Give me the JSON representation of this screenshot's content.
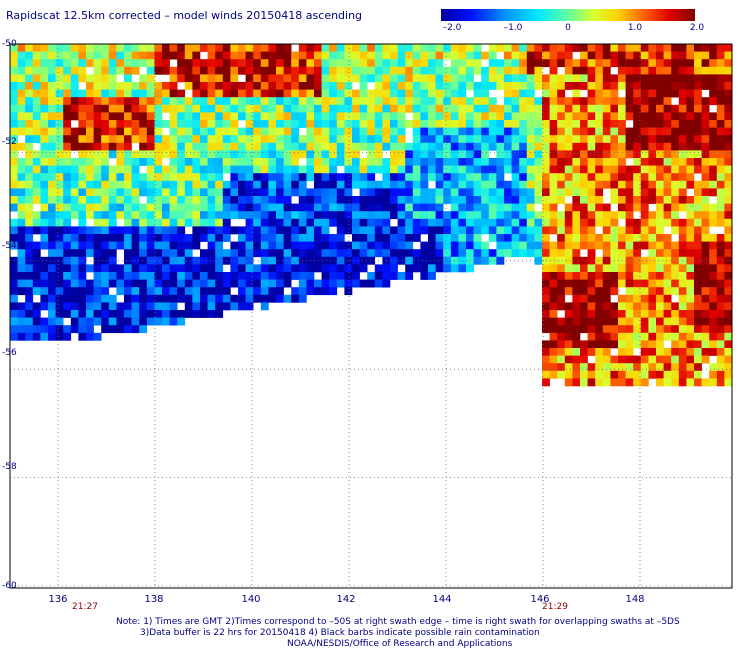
{
  "title": "Rapidscat 12.5km corrected – model winds 20150418 ascending",
  "colorbar": {
    "ticks": [
      {
        "label": "–2.0",
        "value": -2.0
      },
      {
        "label": "–1.0",
        "value": -1.0
      },
      {
        "label": "0",
        "value": 0
      },
      {
        "label": "1.0",
        "value": 1.0
      },
      {
        "label": "2.0",
        "value": 2.0
      }
    ]
  },
  "axes": {
    "lat_labels": [
      "-50",
      "-52",
      "-54",
      "-56",
      "-58",
      "-60"
    ],
    "lat_values": [
      -50,
      -52,
      -54,
      -56,
      -58,
      -60
    ],
    "lon_labels": [
      "136",
      "138",
      "140",
      "142",
      "144",
      "146",
      "148"
    ],
    "lon_values": [
      136,
      138,
      140,
      142,
      144,
      146,
      148
    ]
  },
  "time_labels": [
    {
      "text": "21:27",
      "lon": 136.3
    },
    {
      "text": "21:29",
      "lon": 146.3
    }
  ],
  "notes": {
    "line1": "Note: 1) Times are GMT 2)Times correspond to –50S at right swath edge – time is right swath for overlapping swaths at –5DS",
    "line2": "3)Data buffer is 22 hrs for 20150418 4) Black barbs indicate possible rain contamination",
    "line3": "NOAA/NESDIS/Office of Research and Applications"
  },
  "colors": {
    "text": "#000080",
    "time_label": "#8b0000",
    "grid": "#6a6a8a",
    "frame": "#000000"
  }
}
